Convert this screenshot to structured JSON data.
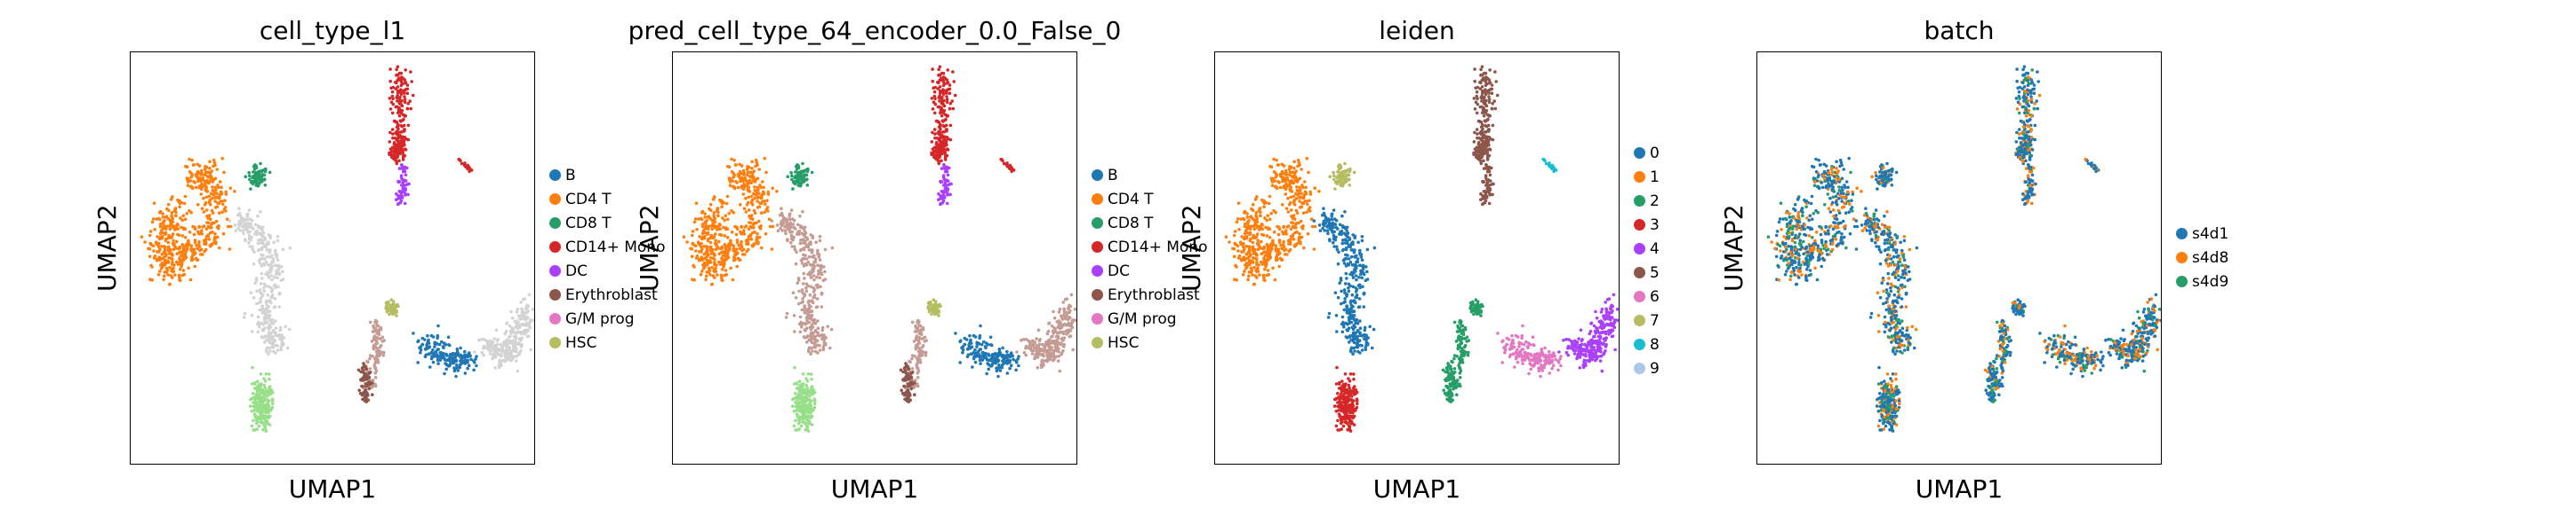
{
  "palette": {
    "B": "#1f77b4",
    "CD4 T": "#ff7f0e",
    "CD8 T": "#279e68",
    "CD14+ Mono": "#d62728",
    "DC": "#aa40fc",
    "Erythroblast": "#8c564b",
    "G/M prog": "#e377c2",
    "HSC": "#b5bd61",
    "other": "#d3d3d3",
    "light_green": "#98df8a",
    "light_blue": "#aec7e8",
    "light_brown": "#c49c94",
    "cyan": "#17becf"
  },
  "chart_data": [
    {
      "type": "scatter",
      "title": "cell_type_l1",
      "xlabel": "UMAP1",
      "ylabel": "UMAP2",
      "legend": {
        "placement": "right",
        "entries": [
          {
            "label": "B",
            "color": "#1f77b4"
          },
          {
            "label": "CD4 T",
            "color": "#ff7f0e"
          },
          {
            "label": "CD8 T",
            "color": "#279e68"
          },
          {
            "label": "CD14+ Mono",
            "color": "#d62728"
          },
          {
            "label": "DC",
            "color": "#aa40fc"
          },
          {
            "label": "Erythroblast",
            "color": "#8c564b"
          },
          {
            "label": "G/M prog",
            "color": "#e377c2"
          },
          {
            "label": "HSC",
            "color": "#b5bd61"
          }
        ]
      },
      "clusters": [
        {
          "name": "left",
          "color": "#ff7f0e"
        },
        {
          "name": "left_tail",
          "color": "#d3d3d3"
        },
        {
          "name": "top_small",
          "color": "#279e68"
        },
        {
          "name": "top_right",
          "color": "#d62728"
        },
        {
          "name": "top_right_tip",
          "color": "#aa40fc"
        },
        {
          "name": "far_right_small",
          "color": "#d62728"
        },
        {
          "name": "bottom_left",
          "color": "#98df8a"
        },
        {
          "name": "mid_stem",
          "color": "#c49c94"
        },
        {
          "name": "mid_left",
          "color": "#8c564b"
        },
        {
          "name": "mid_hsc",
          "color": "#b5bd61"
        },
        {
          "name": "mid_blue",
          "color": "#1f77b4"
        },
        {
          "name": "right_blob",
          "color": "#d3d3d3"
        }
      ]
    },
    {
      "type": "scatter",
      "title": "pred_cell_type_64_encoder_0.0_False_0",
      "xlabel": "UMAP1",
      "ylabel": "UMAP2",
      "legend": {
        "placement": "right",
        "entries": [
          {
            "label": "B",
            "color": "#1f77b4"
          },
          {
            "label": "CD4 T",
            "color": "#ff7f0e"
          },
          {
            "label": "CD8 T",
            "color": "#279e68"
          },
          {
            "label": "CD14+ Mono",
            "color": "#d62728"
          },
          {
            "label": "DC",
            "color": "#aa40fc"
          },
          {
            "label": "Erythroblast",
            "color": "#8c564b"
          },
          {
            "label": "G/M prog",
            "color": "#e377c2"
          },
          {
            "label": "HSC",
            "color": "#b5bd61"
          }
        ]
      },
      "clusters": [
        {
          "name": "left",
          "color": "#ff7f0e"
        },
        {
          "name": "left_tail",
          "color": "#c49c94"
        },
        {
          "name": "top_small",
          "color": "#279e68"
        },
        {
          "name": "top_right",
          "color": "#d62728"
        },
        {
          "name": "top_right_tip",
          "color": "#aa40fc"
        },
        {
          "name": "far_right_small",
          "color": "#d62728"
        },
        {
          "name": "bottom_left",
          "color": "#98df8a"
        },
        {
          "name": "mid_stem",
          "color": "#c49c94"
        },
        {
          "name": "mid_left",
          "color": "#8c564b"
        },
        {
          "name": "mid_hsc",
          "color": "#b5bd61"
        },
        {
          "name": "mid_blue",
          "color": "#1f77b4"
        },
        {
          "name": "right_blob",
          "color": "#c49c94"
        }
      ]
    },
    {
      "type": "scatter",
      "title": "leiden",
      "xlabel": "UMAP1",
      "ylabel": "UMAP2",
      "legend": {
        "placement": "right",
        "entries": [
          {
            "label": "0",
            "color": "#1f77b4"
          },
          {
            "label": "1",
            "color": "#ff7f0e"
          },
          {
            "label": "2",
            "color": "#279e68"
          },
          {
            "label": "3",
            "color": "#d62728"
          },
          {
            "label": "4",
            "color": "#aa40fc"
          },
          {
            "label": "5",
            "color": "#8c564b"
          },
          {
            "label": "6",
            "color": "#e377c2"
          },
          {
            "label": "7",
            "color": "#b5bd61"
          },
          {
            "label": "8",
            "color": "#17becf"
          },
          {
            "label": "9",
            "color": "#aec7e8"
          }
        ]
      },
      "clusters": [
        {
          "name": "left",
          "color": "#ff7f0e"
        },
        {
          "name": "left_tail",
          "color": "#1f77b4"
        },
        {
          "name": "top_small",
          "color": "#b5bd61"
        },
        {
          "name": "top_right",
          "color": "#8c564b"
        },
        {
          "name": "top_right_tip",
          "color": "#8c564b"
        },
        {
          "name": "far_right_small",
          "color": "#17becf"
        },
        {
          "name": "bottom_left",
          "color": "#d62728"
        },
        {
          "name": "mid_stem",
          "color": "#279e68"
        },
        {
          "name": "mid_left",
          "color": "#279e68"
        },
        {
          "name": "mid_hsc",
          "color": "#279e68"
        },
        {
          "name": "mid_blue",
          "color": "#e377c2"
        },
        {
          "name": "right_blob",
          "color": "#aa40fc"
        }
      ]
    },
    {
      "type": "scatter",
      "title": "batch",
      "xlabel": "UMAP1",
      "ylabel": "UMAP2",
      "legend": {
        "placement": "right",
        "entries": [
          {
            "label": "s4d1",
            "color": "#1f77b4"
          },
          {
            "label": "s4d8",
            "color": "#ff7f0e"
          },
          {
            "label": "s4d9",
            "color": "#279e68"
          }
        ]
      },
      "clusters": "mixed"
    }
  ]
}
